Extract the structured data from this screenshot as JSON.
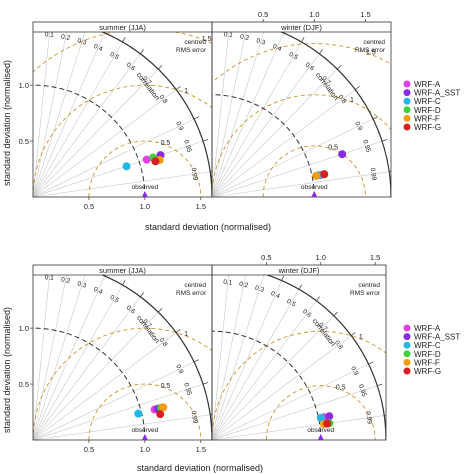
{
  "figure": {
    "ylabel": "standard deviation (normalised)",
    "xlabel": "standard deviation (normalised)"
  },
  "labels": {
    "correlation": "correlation",
    "rms_line1": "centred",
    "rms_line2": "RMS error",
    "observed": "observed"
  },
  "legend": [
    {
      "name": "WRF-A",
      "color": "#e23fe6"
    },
    {
      "name": "WRF-A_SST",
      "color": "#8a2be2"
    },
    {
      "name": "WRF-C",
      "color": "#25b6e8"
    },
    {
      "name": "WRF-D",
      "color": "#3fcf3f"
    },
    {
      "name": "WRF-F",
      "color": "#f39c12"
    },
    {
      "name": "WRF-G",
      "color": "#d62020"
    }
  ],
  "chart_data": [
    {
      "type": "scatter",
      "title": "summer (JJA)",
      "row": 1,
      "col": 1,
      "xlim": [
        0,
        1.6
      ],
      "std_ticks": [
        "0.5",
        "1.0",
        "1.5"
      ],
      "corr_ticks": [
        "0.1",
        "0.2",
        "0.3",
        "0.4",
        "0.5",
        "0.6",
        "0.7",
        "0.8",
        "0.9",
        "0.95",
        "0.99"
      ],
      "rms_contours": [
        "0.5",
        "1",
        "1.5"
      ],
      "ref_std": 1.0,
      "points": [
        {
          "name": "WRF-A",
          "std": 1.07,
          "corr": 0.95
        },
        {
          "name": "WRF-A_SST",
          "std": 1.2,
          "corr": 0.95
        },
        {
          "name": "WRF-C",
          "std": 0.88,
          "corr": 0.95
        },
        {
          "name": "WRF-D",
          "std": 1.13,
          "corr": 0.95
        },
        {
          "name": "WRF-F",
          "std": 1.18,
          "corr": 0.96
        },
        {
          "name": "WRF-G",
          "std": 1.14,
          "corr": 0.96
        }
      ]
    },
    {
      "type": "scatter",
      "title": "winter (DJF)",
      "row": 1,
      "col": 2,
      "xlim": [
        0,
        1.75
      ],
      "std_ticks": [
        "0.5",
        "1.0",
        "1.5"
      ],
      "corr_ticks": [
        "0.1",
        "0.2",
        "0.3",
        "0.4",
        "0.5",
        "0.6",
        "0.7",
        "0.8",
        "0.9",
        "0.95",
        "0.99"
      ],
      "rms_contours": [
        "0.5",
        "1",
        "1.5"
      ],
      "ref_std": 1.0,
      "points": [
        {
          "name": "WRF-A",
          "std": 1.08,
          "corr": 0.98
        },
        {
          "name": "WRF-A_SST",
          "std": 1.34,
          "corr": 0.95
        },
        {
          "name": "WRF-C",
          "std": 1.06,
          "corr": 0.98
        },
        {
          "name": "WRF-D",
          "std": 1.12,
          "corr": 0.98
        },
        {
          "name": "WRF-F",
          "std": 1.04,
          "corr": 0.98
        },
        {
          "name": "WRF-G",
          "std": 1.12,
          "corr": 0.98
        }
      ]
    },
    {
      "type": "scatter",
      "title": "summer (JJA)",
      "row": 2,
      "col": 1,
      "xlim": [
        0,
        1.6
      ],
      "std_ticks": [
        "0.5",
        "1.0",
        "1.5"
      ],
      "corr_ticks": [
        "0.1",
        "0.2",
        "0.3",
        "0.4",
        "0.5",
        "0.6",
        "0.7",
        "0.8",
        "0.9",
        "0.95",
        "0.99"
      ],
      "rms_contours": [
        "0.5",
        "1"
      ],
      "ref_std": 1.0,
      "points": [
        {
          "name": "WRF-A",
          "std": 1.12,
          "corr": 0.97
        },
        {
          "name": "WRF-A_SST",
          "std": 1.15,
          "corr": 0.97
        },
        {
          "name": "WRF-C",
          "std": 0.97,
          "corr": 0.97
        },
        {
          "name": "WRF-D",
          "std": 1.18,
          "corr": 0.97
        },
        {
          "name": "WRF-F",
          "std": 1.2,
          "corr": 0.97
        },
        {
          "name": "WRF-G",
          "std": 1.16,
          "corr": 0.98
        }
      ]
    },
    {
      "type": "scatter",
      "title": "winter (DJF)",
      "row": 2,
      "col": 2,
      "xlim": [
        0,
        1.6
      ],
      "std_ticks": [
        "0.5",
        "1.0",
        "1.5"
      ],
      "corr_ticks": [
        "0.1",
        "0.2",
        "0.3",
        "0.4",
        "0.5",
        "0.6",
        "0.7",
        "0.8",
        "0.9",
        "0.95",
        "0.99"
      ],
      "rms_contours": [
        "0.5",
        "1"
      ],
      "ref_std": 1.0,
      "points": [
        {
          "name": "WRF-A",
          "std": 1.05,
          "corr": 0.98
        },
        {
          "name": "WRF-A_SST",
          "std": 1.1,
          "corr": 0.98
        },
        {
          "name": "WRF-C",
          "std": 1.02,
          "corr": 0.98
        },
        {
          "name": "WRF-D",
          "std": 1.09,
          "corr": 0.99
        },
        {
          "name": "WRF-F",
          "std": 1.04,
          "corr": 0.99
        },
        {
          "name": "WRF-G",
          "std": 1.07,
          "corr": 0.99
        }
      ]
    }
  ]
}
